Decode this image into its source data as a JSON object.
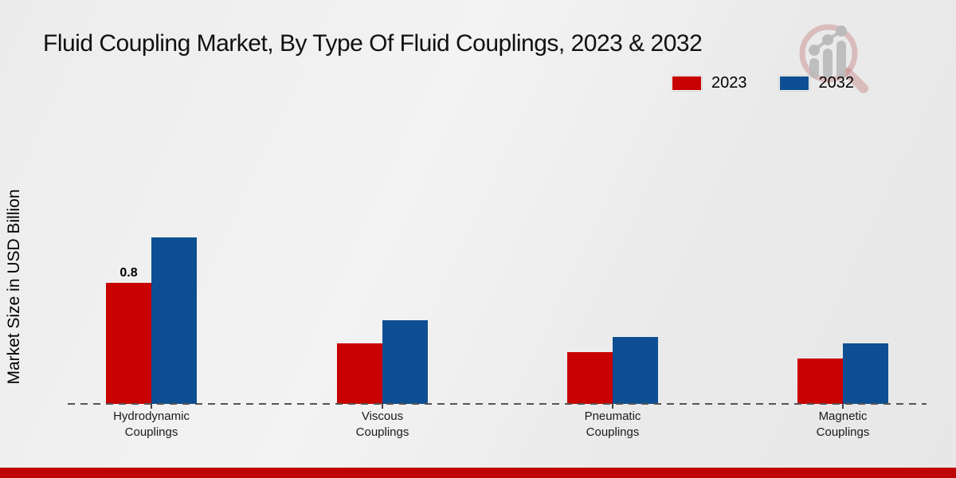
{
  "title": "Fluid Coupling Market, By Type Of Fluid Couplings, 2023 & 2032",
  "y_axis_label": "Market Size in USD Billion",
  "legend": [
    {
      "label": "2023",
      "color": "#c80101"
    },
    {
      "label": "2032",
      "color": "#0d4f92"
    }
  ],
  "colors": {
    "bar_2023": "#c80101",
    "bar_2032": "#0d4f92",
    "bottom_strip": "#be0404",
    "baseline_dash": "#555555"
  },
  "watermark_icon": "magnifier-bar-chart-logo",
  "chart_data": {
    "type": "bar",
    "categories": [
      "Hydrodynamic Couplings",
      "Viscous Couplings",
      "Pneumatic Couplings",
      "Magnetic Couplings"
    ],
    "series": [
      {
        "name": "2023",
        "color": "#c80101",
        "values": [
          0.8,
          0.4,
          0.34,
          0.3
        ]
      },
      {
        "name": "2032",
        "color": "#0d4f92",
        "values": [
          1.1,
          0.55,
          0.44,
          0.4
        ]
      }
    ],
    "data_labels": [
      {
        "series_index": 0,
        "category_index": 0,
        "text": "0.8"
      }
    ],
    "ylabel": "Market Size in USD Billion",
    "xlabel": "",
    "ylim": [
      0,
      1.2
    ],
    "grid": false,
    "baseline_style": "dashed",
    "legend_position": "top-right"
  }
}
